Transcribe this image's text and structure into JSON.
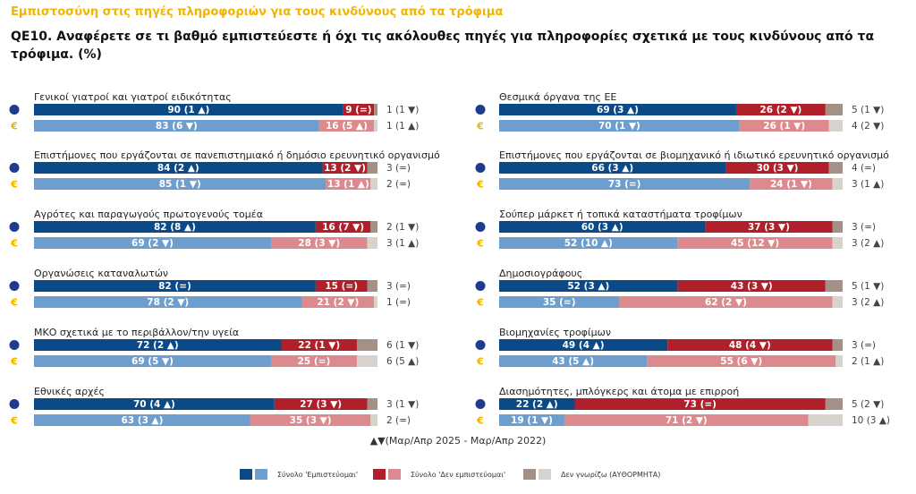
{
  "header": {
    "supertitle": "Εμπιστοσύνη  στις πηγές πληροφοριών για τους κινδύνους από τα τρόφιμα",
    "question": "QE10. Αναφέρετε σε τι βαθμό εμπιστεύεστε ή όχι τις ακόλουθες πηγές για πληροφορίες σχετικά με τους κινδύνους από τα τρόφιμα. (%)"
  },
  "footnote": "▲▼(Μαρ/Απρ 2025 - Μαρ/Απρ 2022)",
  "colors": {
    "trust_eu": "#0b4a86",
    "trust_gr": "#6e9ecd",
    "distrust_eu": "#b0202a",
    "distrust_gr": "#dc8a8e",
    "dk_eu": "#a29184",
    "dk_gr": "#d9d3cd",
    "eu_icon": "#1f3b8c",
    "gr_icon": "#f2b400"
  },
  "legend": {
    "trust": "Σύνολο 'Εμπιστεύομαι'",
    "distrust": "Σύνολο 'Δεν εμπιστεύομαι'",
    "dk": "Δεν γνωρίζω (ΑΥΘΟΡΜΗΤΑ)"
  },
  "chart_data": {
    "type": "bar",
    "orientation": "horizontal-stacked",
    "rows": [
      "EU",
      "GR"
    ],
    "series_names": [
      "Σύνολο 'Εμπιστεύομαι'",
      "Σύνολο 'Δεν εμπιστεύομαι'",
      "Δεν γνωρίζω (ΑΥΘΟΡΜΗΤΑ)"
    ],
    "groups": [
      {
        "label": "Γενικοί γιατροί και γιατροί ειδικότητας",
        "eu": {
          "trust": 90,
          "trust_change": "(1 ▲)",
          "distrust": 9,
          "distrust_change": "(=)",
          "dk": 1,
          "dk_change": "(1 ▼)"
        },
        "gr": {
          "trust": 83,
          "trust_change": "(6 ▼)",
          "distrust": 16,
          "distrust_change": "(5 ▲)",
          "dk": 1,
          "dk_change": "(1 ▲)"
        }
      },
      {
        "label": "Επιστήμονες που εργάζονται σε πανεπιστημιακό ή δημόσιο ερευνητικό οργανισμό",
        "eu": {
          "trust": 84,
          "trust_change": "(2 ▲)",
          "distrust": 13,
          "distrust_change": "(2 ▼)",
          "dk": 3,
          "dk_change": "(=)"
        },
        "gr": {
          "trust": 85,
          "trust_change": "(1 ▼)",
          "distrust": 13,
          "distrust_change": "(1 ▲)",
          "dk": 2,
          "dk_change": "(=)"
        }
      },
      {
        "label": "Αγρότες και παραγωγούς πρωτογενούς τομέα",
        "eu": {
          "trust": 82,
          "trust_change": "(8 ▲)",
          "distrust": 16,
          "distrust_change": "(7 ▼)",
          "dk": 2,
          "dk_change": "(1 ▼)"
        },
        "gr": {
          "trust": 69,
          "trust_change": "(2 ▼)",
          "distrust": 28,
          "distrust_change": "(3 ▼)",
          "dk": 3,
          "dk_change": "(1 ▲)"
        }
      },
      {
        "label": "Οργανώσεις καταναλωτών",
        "eu": {
          "trust": 82,
          "trust_change": "(=)",
          "distrust": 15,
          "distrust_change": "(=)",
          "dk": 3,
          "dk_change": "(=)"
        },
        "gr": {
          "trust": 78,
          "trust_change": "(2 ▼)",
          "distrust": 21,
          "distrust_change": "(2 ▼)",
          "dk": 1,
          "dk_change": "(=)"
        }
      },
      {
        "label": "ΜΚΟ σχετικά με το περιβάλλον/την υγεία",
        "eu": {
          "trust": 72,
          "trust_change": "(2 ▲)",
          "distrust": 22,
          "distrust_change": "(1 ▼)",
          "dk": 6,
          "dk_change": "(1 ▼)"
        },
        "gr": {
          "trust": 69,
          "trust_change": "(5 ▼)",
          "distrust": 25,
          "distrust_change": "(=)",
          "dk": 6,
          "dk_change": "(5 ▲)"
        }
      },
      {
        "label": "Εθνικές αρχές",
        "eu": {
          "trust": 70,
          "trust_change": "(4 ▲)",
          "distrust": 27,
          "distrust_change": "(3 ▼)",
          "dk": 3,
          "dk_change": "(1 ▼)"
        },
        "gr": {
          "trust": 63,
          "trust_change": "(3 ▲)",
          "distrust": 35,
          "distrust_change": "(3 ▼)",
          "dk": 2,
          "dk_change": "(=)"
        }
      },
      {
        "label": "Θεσμικά όργανα της ΕΕ",
        "eu": {
          "trust": 69,
          "trust_change": "(3 ▲)",
          "distrust": 26,
          "distrust_change": "(2 ▼)",
          "dk": 5,
          "dk_change": "(1 ▼)"
        },
        "gr": {
          "trust": 70,
          "trust_change": "(1 ▼)",
          "distrust": 26,
          "distrust_change": "(1 ▼)",
          "dk": 4,
          "dk_change": "(2 ▼)"
        }
      },
      {
        "label": "Επιστήμονες που εργάζονται σε βιομηχανικό ή ιδιωτικό ερευνητικό οργανισμό",
        "eu": {
          "trust": 66,
          "trust_change": "(3 ▲)",
          "distrust": 30,
          "distrust_change": "(3 ▼)",
          "dk": 4,
          "dk_change": "(=)"
        },
        "gr": {
          "trust": 73,
          "trust_change": "(=)",
          "distrust": 24,
          "distrust_change": "(1 ▼)",
          "dk": 3,
          "dk_change": "(1 ▲)"
        }
      },
      {
        "label": "Σούπερ μάρκετ ή τοπικά καταστήματα τροφίμων",
        "eu": {
          "trust": 60,
          "trust_change": "(3 ▲)",
          "distrust": 37,
          "distrust_change": "(3 ▼)",
          "dk": 3,
          "dk_change": "(=)"
        },
        "gr": {
          "trust": 52,
          "trust_change": "(10 ▲)",
          "distrust": 45,
          "distrust_change": "(12 ▼)",
          "dk": 3,
          "dk_change": "(2 ▲)"
        }
      },
      {
        "label": "Δημοσιογράφους",
        "eu": {
          "trust": 52,
          "trust_change": "(3 ▲)",
          "distrust": 43,
          "distrust_change": "(3 ▼)",
          "dk": 5,
          "dk_change": "(1 ▼)"
        },
        "gr": {
          "trust": 35,
          "trust_change": "(=)",
          "distrust": 62,
          "distrust_change": "(2 ▼)",
          "dk": 3,
          "dk_change": "(2 ▲)"
        }
      },
      {
        "label": "Βιομηχανίες τροφίμων",
        "eu": {
          "trust": 49,
          "trust_change": "(4 ▲)",
          "distrust": 48,
          "distrust_change": "(4 ▼)",
          "dk": 3,
          "dk_change": "(=)"
        },
        "gr": {
          "trust": 43,
          "trust_change": "(5 ▲)",
          "distrust": 55,
          "distrust_change": "(6 ▼)",
          "dk": 2,
          "dk_change": "(1 ▲)"
        }
      },
      {
        "label": "Διασημότητες, μπλόγκερς και άτομα με επιρροή",
        "eu": {
          "trust": 22,
          "trust_change": "(2 ▲)",
          "distrust": 73,
          "distrust_change": "(=)",
          "dk": 5,
          "dk_change": "(2 ▼)"
        },
        "gr": {
          "trust": 19,
          "trust_change": "(1 ▼)",
          "distrust": 71,
          "distrust_change": "(2 ▼)",
          "dk": 10,
          "dk_change": "(3 ▲)"
        }
      }
    ]
  }
}
